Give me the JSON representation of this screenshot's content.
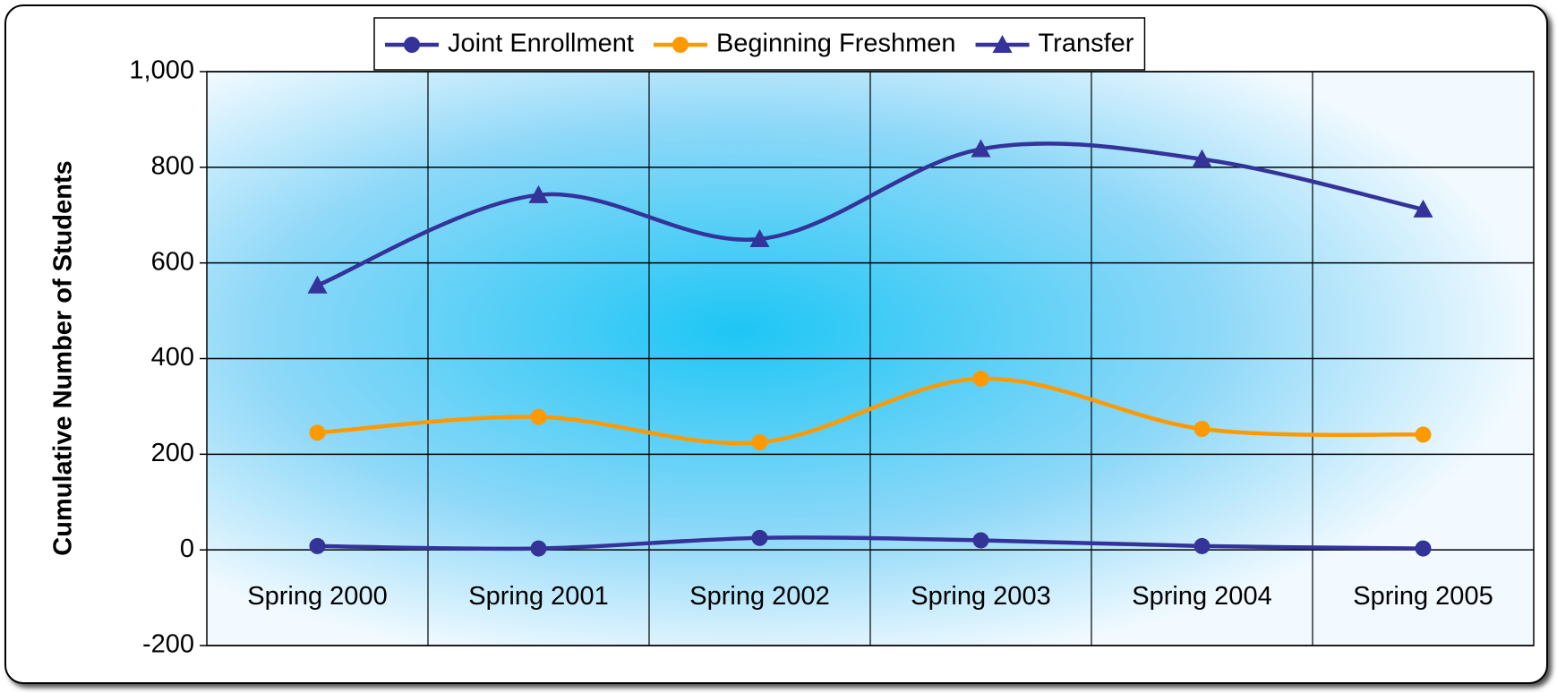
{
  "chart_data": {
    "type": "line",
    "y_label": "Cumulative Number of Students",
    "categories": [
      "Spring 2000",
      "Spring 2001",
      "Spring 2002",
      "Spring 2003",
      "Spring 2004",
      "Spring 2005"
    ],
    "series": [
      {
        "name": "Joint Enrollment",
        "color": "#333399",
        "marker": "circle",
        "values": [
          8,
          3,
          25,
          20,
          8,
          3
        ]
      },
      {
        "name": "Beginning Freshmen",
        "color": "#ff9900",
        "marker": "circle",
        "values": [
          245,
          278,
          225,
          358,
          253,
          241
        ]
      },
      {
        "name": "Transfer",
        "color": "#333399",
        "marker": "triangle",
        "values": [
          553,
          742,
          650,
          838,
          817,
          712
        ]
      }
    ],
    "ylim": [
      -200,
      1000
    ],
    "yticks": [
      -200,
      0,
      200,
      400,
      600,
      {
        "value": 1000,
        "label": "1,000"
      },
      800
    ],
    "grid": true,
    "smooth": true,
    "legend": "top"
  }
}
